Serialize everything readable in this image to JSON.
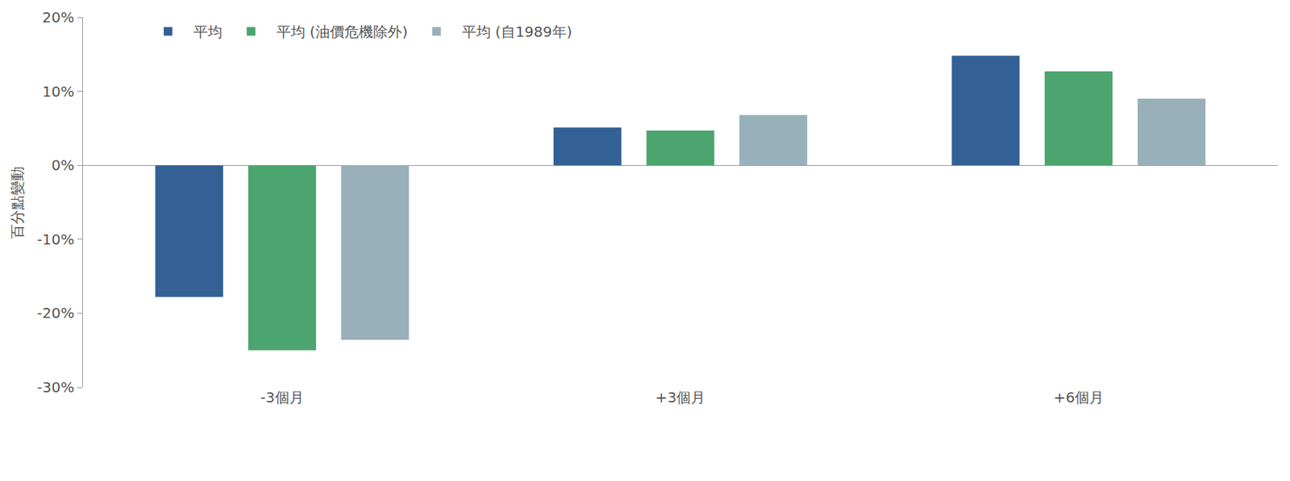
{
  "chart_data": {
    "type": "bar",
    "y_label": "百分點變動",
    "categories": [
      "-3個月",
      "+3個月",
      "+6個月"
    ],
    "series": [
      {
        "name": "平均",
        "color": "#336195",
        "values": [
          -17.8,
          5.1,
          14.8
        ]
      },
      {
        "name": "平均 (油價危機除外)",
        "color": "#4ca46f",
        "values": [
          -25.0,
          4.7,
          12.7
        ]
      },
      {
        "name": "平均 (自1989年)",
        "color": "#98b0ba",
        "values": [
          -23.6,
          6.8,
          9.0
        ]
      }
    ],
    "ylim": [
      -30,
      20
    ],
    "yticks": [
      {
        "value": -30,
        "label": "-30%"
      },
      {
        "value": -20,
        "label": "-20%"
      },
      {
        "value": -10,
        "label": "-10%"
      },
      {
        "value": 0,
        "label": "0%"
      },
      {
        "value": 10,
        "label": "10%"
      },
      {
        "value": 20,
        "label": "20%"
      }
    ],
    "grid": false,
    "legend": "top-left"
  }
}
